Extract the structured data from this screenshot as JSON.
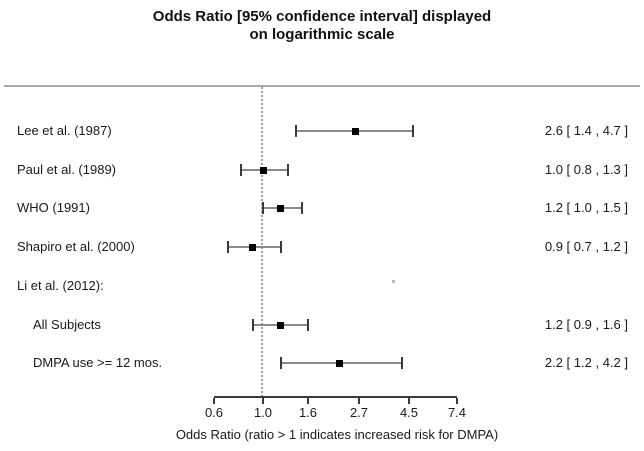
{
  "title": {
    "line1": "Odds Ratio [95% confidence interval] displayed",
    "line2": "on logarithmic scale"
  },
  "axis": {
    "label": "Odds Ratio (ratio > 1 indicates increased risk for DMPA)",
    "tick_labels": [
      "0.6",
      "1.0",
      "1.6",
      "2.7",
      "4.5",
      "7.4"
    ]
  },
  "colors": {
    "ci_line": "#8a8a8a",
    "ci_cap": "#3a3a3a",
    "marker": "#000000",
    "separator": "#a9a9a9",
    "reference_line": "#9f9f9f",
    "text": "#1a1a1a"
  },
  "chart_data": {
    "type": "scatter",
    "subtype": "forest-plot",
    "title": "Odds Ratio [95% confidence interval] displayed on logarithmic scale",
    "xlabel": "Odds Ratio (ratio > 1 indicates increased risk for DMPA)",
    "xscale": "log",
    "xticks": [
      0.6,
      1.0,
      1.6,
      2.7,
      4.5,
      7.4
    ],
    "xlim": [
      0.6,
      7.4
    ],
    "reference_line": 1.0,
    "grid": false,
    "studies": [
      {
        "label": "Lee et al. (1987)",
        "indent": false,
        "or": 2.6,
        "ci_low": 1.4,
        "ci_high": 4.7,
        "value_label": "2.6 [ 1.4 , 4.7 ]"
      },
      {
        "label": "Paul et al. (1989)",
        "indent": false,
        "or": 1.0,
        "ci_low": 0.8,
        "ci_high": 1.3,
        "value_label": "1.0 [ 0.8 , 1.3 ]"
      },
      {
        "label": "WHO (1991)",
        "indent": false,
        "or": 1.2,
        "ci_low": 1.0,
        "ci_high": 1.5,
        "value_label": "1.2 [ 1.0 , 1.5 ]"
      },
      {
        "label": "Shapiro et al. (2000)",
        "indent": false,
        "or": 0.9,
        "ci_low": 0.7,
        "ci_high": 1.2,
        "value_label": "0.9 [ 0.7 , 1.2 ]"
      },
      {
        "label": "Li et al. (2012):",
        "indent": false,
        "or": null,
        "ci_low": null,
        "ci_high": null,
        "value_label": ""
      },
      {
        "label": "All Subjects",
        "indent": true,
        "or": 1.2,
        "ci_low": 0.9,
        "ci_high": 1.6,
        "value_label": "1.2 [ 0.9 , 1.6 ]"
      },
      {
        "label": "DMPA use >= 12 mos.",
        "indent": true,
        "or": 2.2,
        "ci_low": 1.2,
        "ci_high": 4.2,
        "value_label": "2.2 [ 1.2 , 4.2 ]"
      }
    ]
  }
}
